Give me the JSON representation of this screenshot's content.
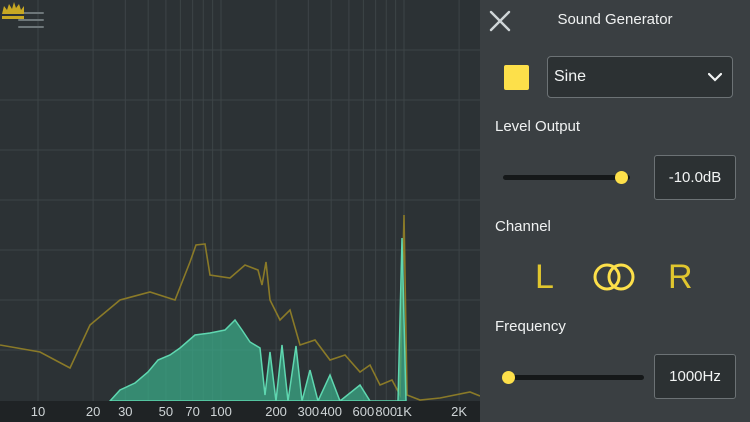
{
  "analyzer": {
    "freq_ticks": [
      {
        "label": "10",
        "hz": 10
      },
      {
        "label": "20",
        "hz": 20
      },
      {
        "label": "30",
        "hz": 30
      },
      {
        "label": "50",
        "hz": 50
      },
      {
        "label": "70",
        "hz": 70
      },
      {
        "label": "100",
        "hz": 100
      },
      {
        "label": "200",
        "hz": 200
      },
      {
        "label": "300",
        "hz": 300
      },
      {
        "label": "400",
        "hz": 400
      },
      {
        "label": "600",
        "hz": 600
      },
      {
        "label": "800",
        "hz": 800
      },
      {
        "label": "1K",
        "hz": 1000
      },
      {
        "label": "2K",
        "hz": 2000
      }
    ],
    "colors": {
      "peak_line": "#8a7a28",
      "spectrum_fill": "#3aa886",
      "spectrum_line": "#5fd7b0",
      "grid": "#3d4447"
    }
  },
  "header": {
    "menu_icon": "menu-icon",
    "badge_icon": "crown-icon"
  },
  "panel": {
    "title": "Sound Generator",
    "close_icon": "close-icon",
    "waveform": {
      "selected": "Sine",
      "color": "#fde04a"
    },
    "level": {
      "label": "Level Output",
      "value": "-10.0dB",
      "slider_fraction": 0.93
    },
    "channel": {
      "label": "Channel",
      "left": "L",
      "stereo_icon": "stereo-link-icon",
      "right": "R"
    },
    "frequency": {
      "label": "Frequency",
      "value": "1000Hz",
      "slider_fraction": 0.04
    }
  }
}
